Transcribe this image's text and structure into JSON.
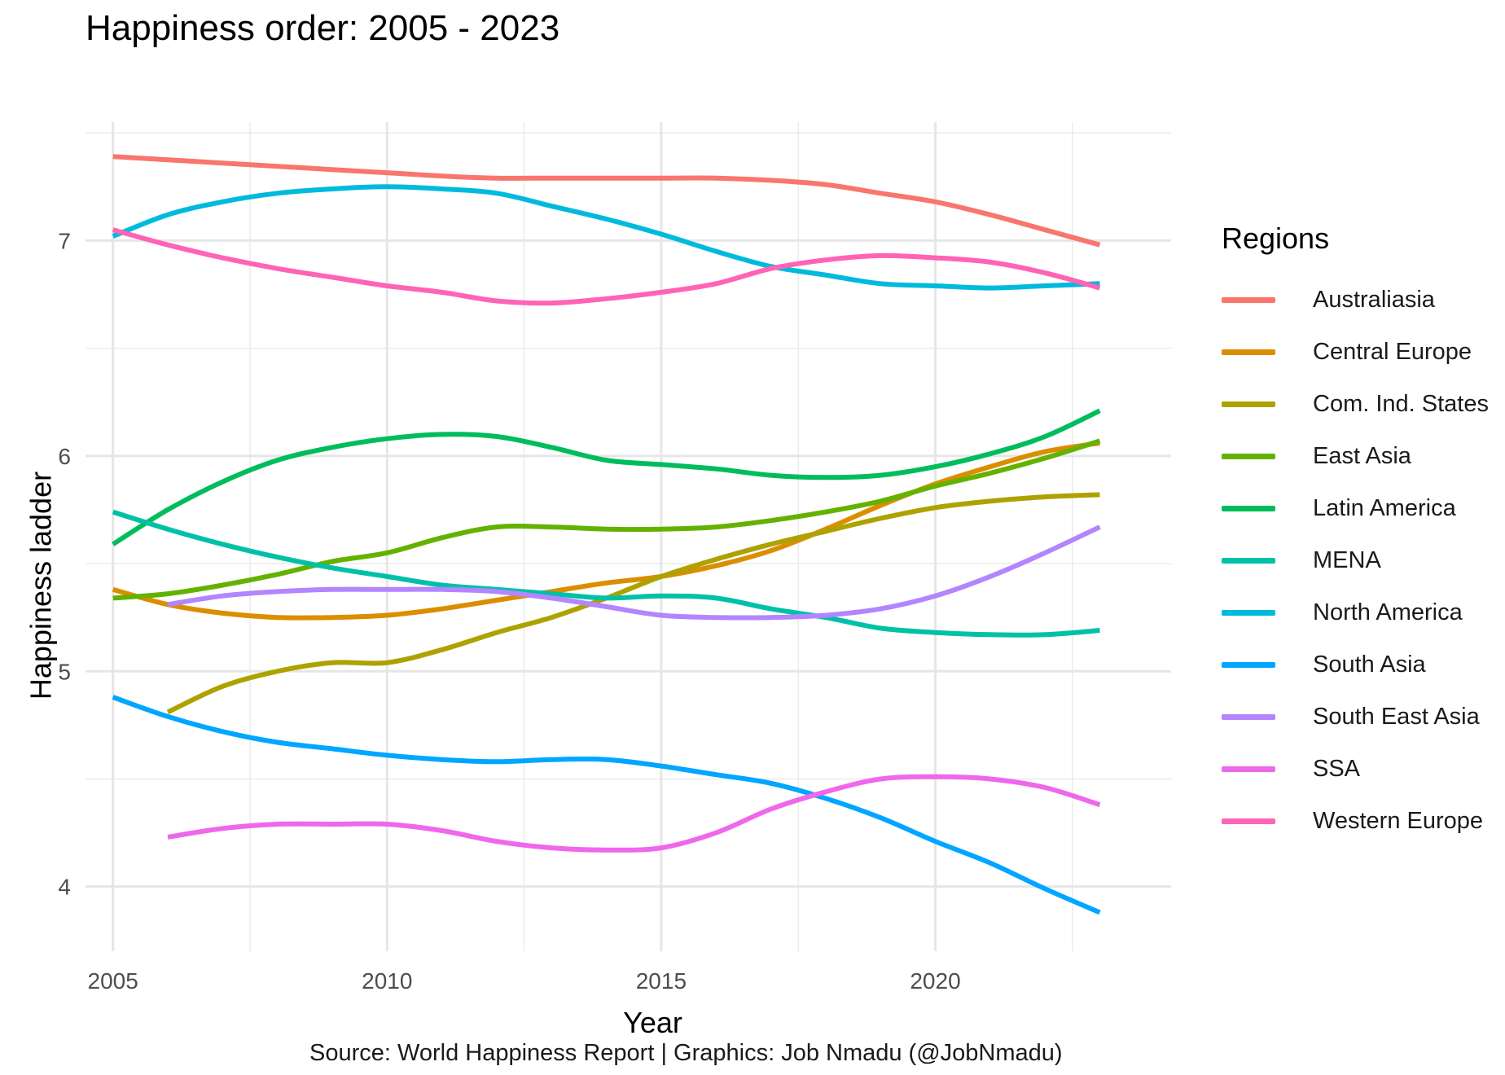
{
  "chart_data": {
    "type": "line",
    "title": "Happiness order: 2005 - 2023",
    "xlabel": "Year",
    "ylabel": "Happiness ladder",
    "caption": "Source: World Happiness Report  |  Graphics: Job Nmadu (@JobNmadu)",
    "legend_title": "Regions",
    "legend_position": "right",
    "grid": true,
    "xlim": [
      2004.5,
      2024.3
    ],
    "ylim": [
      3.7,
      7.55
    ],
    "xticks": [
      2005,
      2010,
      2015,
      2020
    ],
    "xtick_labels": [
      "2005",
      "2010",
      "2015",
      "2020"
    ],
    "yticks": [
      4,
      5,
      6,
      7
    ],
    "ytick_labels": [
      "4",
      "5",
      "6",
      "7"
    ],
    "series": [
      {
        "name": "Australiasia",
        "color": "#F8766D",
        "x": [
          2005,
          2007,
          2009,
          2011,
          2012,
          2013,
          2014,
          2015,
          2016,
          2017,
          2018,
          2019,
          2020,
          2021,
          2022,
          2023
        ],
        "y": [
          7.39,
          7.36,
          7.33,
          7.3,
          7.29,
          7.29,
          7.29,
          7.29,
          7.29,
          7.28,
          7.26,
          7.22,
          7.18,
          7.12,
          7.05,
          6.98
        ]
      },
      {
        "name": "Central Europe",
        "color": "#DB8E00",
        "x": [
          2005,
          2006,
          2007,
          2008,
          2009,
          2010,
          2011,
          2012,
          2013,
          2014,
          2015,
          2016,
          2017,
          2018,
          2019,
          2020,
          2021,
          2022,
          2023
        ],
        "y": [
          5.38,
          5.31,
          5.27,
          5.25,
          5.25,
          5.26,
          5.29,
          5.33,
          5.37,
          5.41,
          5.44,
          5.49,
          5.56,
          5.66,
          5.77,
          5.87,
          5.95,
          6.02,
          6.06
        ]
      },
      {
        "name": "Com. Ind. States",
        "color": "#AEA200",
        "x": [
          2006,
          2007,
          2008,
          2009,
          2010,
          2011,
          2012,
          2013,
          2014,
          2015,
          2016,
          2017,
          2018,
          2019,
          2020,
          2021,
          2022,
          2023
        ],
        "y": [
          4.81,
          4.93,
          5.0,
          5.04,
          5.04,
          5.1,
          5.18,
          5.25,
          5.34,
          5.44,
          5.52,
          5.59,
          5.65,
          5.71,
          5.76,
          5.79,
          5.81,
          5.82
        ]
      },
      {
        "name": "East Asia",
        "color": "#64B200",
        "x": [
          2005,
          2006,
          2007,
          2008,
          2009,
          2010,
          2011,
          2012,
          2013,
          2014,
          2015,
          2016,
          2017,
          2018,
          2019,
          2020,
          2021,
          2022,
          2023
        ],
        "y": [
          5.34,
          5.36,
          5.4,
          5.45,
          5.51,
          5.55,
          5.62,
          5.67,
          5.67,
          5.66,
          5.66,
          5.67,
          5.7,
          5.74,
          5.79,
          5.86,
          5.92,
          5.99,
          6.07
        ]
      },
      {
        "name": "Latin America",
        "color": "#00BD5C",
        "x": [
          2005,
          2006,
          2007,
          2008,
          2009,
          2010,
          2011,
          2012,
          2013,
          2014,
          2015,
          2016,
          2017,
          2018,
          2019,
          2020,
          2021,
          2022,
          2023
        ],
        "y": [
          5.59,
          5.75,
          5.88,
          5.98,
          6.04,
          6.08,
          6.1,
          6.09,
          6.04,
          5.98,
          5.96,
          5.94,
          5.91,
          5.9,
          5.91,
          5.95,
          6.01,
          6.09,
          6.21
        ]
      },
      {
        "name": "MENA",
        "color": "#00C1A7",
        "x": [
          2005,
          2006,
          2007,
          2008,
          2009,
          2010,
          2011,
          2012,
          2013,
          2014,
          2015,
          2016,
          2017,
          2018,
          2019,
          2020,
          2021,
          2022,
          2023
        ],
        "y": [
          5.74,
          5.66,
          5.59,
          5.53,
          5.48,
          5.44,
          5.4,
          5.38,
          5.36,
          5.34,
          5.35,
          5.34,
          5.29,
          5.25,
          5.2,
          5.18,
          5.17,
          5.17,
          5.19
        ]
      },
      {
        "name": "North America",
        "color": "#00BADE",
        "x": [
          2005,
          2006,
          2007,
          2008,
          2009,
          2010,
          2011,
          2012,
          2013,
          2014,
          2015,
          2016,
          2017,
          2018,
          2019,
          2020,
          2021,
          2022,
          2023
        ],
        "y": [
          7.02,
          7.12,
          7.18,
          7.22,
          7.24,
          7.25,
          7.24,
          7.22,
          7.16,
          7.1,
          7.03,
          6.95,
          6.88,
          6.84,
          6.8,
          6.79,
          6.78,
          6.79,
          6.8
        ]
      },
      {
        "name": "South Asia",
        "color": "#00A6FF",
        "x": [
          2005,
          2006,
          2007,
          2008,
          2009,
          2010,
          2011,
          2012,
          2013,
          2014,
          2015,
          2016,
          2017,
          2018,
          2019,
          2020,
          2021,
          2022,
          2023
        ],
        "y": [
          4.88,
          4.79,
          4.72,
          4.67,
          4.64,
          4.61,
          4.59,
          4.58,
          4.59,
          4.59,
          4.56,
          4.52,
          4.48,
          4.41,
          4.32,
          4.21,
          4.11,
          3.99,
          3.88
        ]
      },
      {
        "name": "South East Asia",
        "color": "#B385FF",
        "x": [
          2006,
          2007,
          2008,
          2009,
          2010,
          2011,
          2012,
          2013,
          2014,
          2015,
          2016,
          2017,
          2018,
          2019,
          2020,
          2021,
          2022,
          2023
        ],
        "y": [
          5.31,
          5.35,
          5.37,
          5.38,
          5.38,
          5.38,
          5.37,
          5.34,
          5.3,
          5.26,
          5.25,
          5.25,
          5.26,
          5.29,
          5.35,
          5.44,
          5.55,
          5.67
        ]
      },
      {
        "name": "SSA",
        "color": "#EF67EB",
        "x": [
          2006,
          2007,
          2008,
          2009,
          2010,
          2011,
          2012,
          2013,
          2014,
          2015,
          2016,
          2017,
          2018,
          2019,
          2020,
          2021,
          2022,
          2023
        ],
        "y": [
          4.23,
          4.27,
          4.29,
          4.29,
          4.29,
          4.26,
          4.21,
          4.18,
          4.17,
          4.18,
          4.25,
          4.36,
          4.44,
          4.5,
          4.51,
          4.5,
          4.46,
          4.38
        ]
      },
      {
        "name": "Western Europe",
        "color": "#FF63B6",
        "x": [
          2005,
          2006,
          2007,
          2008,
          2009,
          2010,
          2011,
          2012,
          2013,
          2014,
          2015,
          2016,
          2017,
          2018,
          2019,
          2020,
          2021,
          2022,
          2023
        ],
        "y": [
          7.05,
          6.98,
          6.92,
          6.87,
          6.83,
          6.79,
          6.76,
          6.72,
          6.71,
          6.73,
          6.76,
          6.8,
          6.87,
          6.91,
          6.93,
          6.92,
          6.9,
          6.85,
          6.78
        ]
      }
    ]
  }
}
